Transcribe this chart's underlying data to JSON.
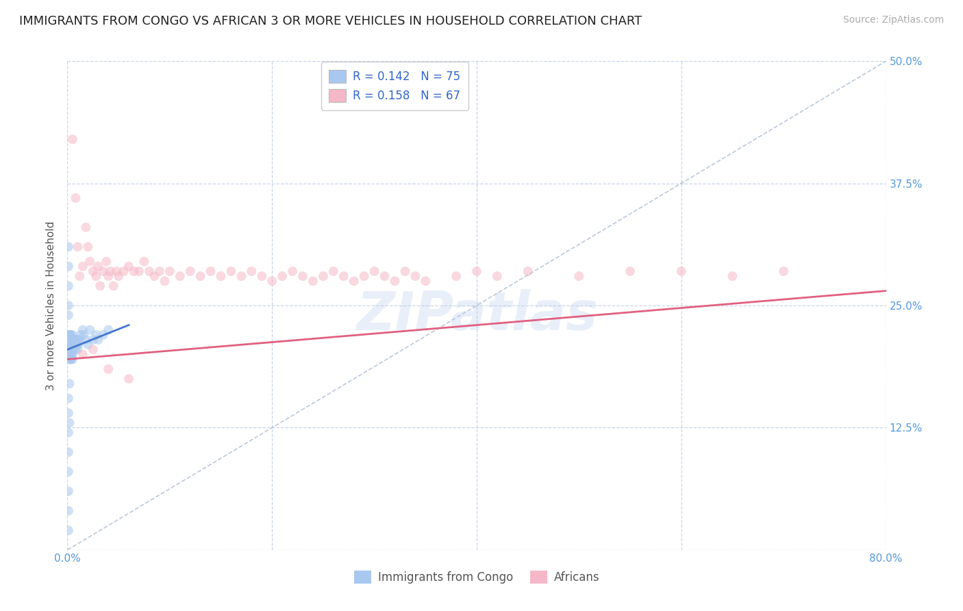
{
  "title": "IMMIGRANTS FROM CONGO VS AFRICAN 3 OR MORE VEHICLES IN HOUSEHOLD CORRELATION CHART",
  "source": "Source: ZipAtlas.com",
  "ylabel": "3 or more Vehicles in Household",
  "xlim": [
    0.0,
    0.8
  ],
  "ylim": [
    0.0,
    0.5
  ],
  "xticks": [
    0.0,
    0.2,
    0.4,
    0.6,
    0.8
  ],
  "xtick_labels": [
    "0.0%",
    "",
    "",
    "",
    "80.0%"
  ],
  "yticks": [
    0.0,
    0.125,
    0.25,
    0.375,
    0.5
  ],
  "ytick_labels_right": [
    "",
    "12.5%",
    "25.0%",
    "37.5%",
    "50.0%"
  ],
  "legend_entries": [
    {
      "label": "R = 0.142   N = 75",
      "color": "#a8c8f0"
    },
    {
      "label": "R = 0.158   N = 67",
      "color": "#f5b8c8"
    }
  ],
  "bottom_legend": [
    {
      "label": "Immigrants from Congo",
      "color": "#a8c8f0"
    },
    {
      "label": "Africans",
      "color": "#f5b8c8"
    }
  ],
  "watermark": "ZIPatlas",
  "title_color": "#222222",
  "title_fontsize": 13,
  "source_color": "#aaaaaa",
  "source_fontsize": 10,
  "axis_label_color": "#555555",
  "tick_color": "#5599dd",
  "grid_color": "#c8d4e8",
  "scatter_alpha": 0.55,
  "scatter_size": 100,
  "line_blue": "#4477cc",
  "line_pink": "#e06080",
  "diag_line_color": "#aabbd0",
  "legend_text_color": "#3366cc",
  "congo_points_x": [
    0.001,
    0.001,
    0.001,
    0.001,
    0.002,
    0.002,
    0.002,
    0.002,
    0.002,
    0.002,
    0.002,
    0.002,
    0.002,
    0.002,
    0.002,
    0.003,
    0.003,
    0.003,
    0.003,
    0.003,
    0.003,
    0.003,
    0.003,
    0.003,
    0.003,
    0.004,
    0.004,
    0.004,
    0.004,
    0.004,
    0.004,
    0.004,
    0.005,
    0.005,
    0.005,
    0.005,
    0.005,
    0.006,
    0.006,
    0.006,
    0.007,
    0.007,
    0.008,
    0.008,
    0.009,
    0.01,
    0.01,
    0.011,
    0.012,
    0.013,
    0.015,
    0.016,
    0.018,
    0.02,
    0.022,
    0.025,
    0.028,
    0.03,
    0.035,
    0.04,
    0.001,
    0.001,
    0.001,
    0.001,
    0.001,
    0.001,
    0.001,
    0.001,
    0.001,
    0.001,
    0.001,
    0.001,
    0.001,
    0.002,
    0.002
  ],
  "congo_points_y": [
    0.215,
    0.21,
    0.22,
    0.205,
    0.215,
    0.22,
    0.21,
    0.2,
    0.215,
    0.205,
    0.195,
    0.21,
    0.2,
    0.215,
    0.205,
    0.215,
    0.22,
    0.21,
    0.2,
    0.195,
    0.215,
    0.205,
    0.21,
    0.22,
    0.2,
    0.215,
    0.205,
    0.21,
    0.195,
    0.2,
    0.215,
    0.205,
    0.21,
    0.2,
    0.215,
    0.195,
    0.22,
    0.215,
    0.205,
    0.21,
    0.215,
    0.21,
    0.205,
    0.215,
    0.21,
    0.215,
    0.205,
    0.21,
    0.215,
    0.22,
    0.225,
    0.22,
    0.215,
    0.21,
    0.225,
    0.215,
    0.22,
    0.215,
    0.22,
    0.225,
    0.155,
    0.14,
    0.12,
    0.1,
    0.08,
    0.06,
    0.04,
    0.02,
    0.31,
    0.29,
    0.27,
    0.25,
    0.24,
    0.17,
    0.13
  ],
  "african_points_x": [
    0.005,
    0.008,
    0.01,
    0.012,
    0.015,
    0.018,
    0.02,
    0.022,
    0.025,
    0.028,
    0.03,
    0.032,
    0.035,
    0.038,
    0.04,
    0.042,
    0.045,
    0.048,
    0.05,
    0.055,
    0.06,
    0.065,
    0.07,
    0.075,
    0.08,
    0.085,
    0.09,
    0.095,
    0.1,
    0.11,
    0.12,
    0.13,
    0.14,
    0.15,
    0.16,
    0.17,
    0.18,
    0.19,
    0.2,
    0.21,
    0.22,
    0.23,
    0.24,
    0.25,
    0.26,
    0.27,
    0.28,
    0.29,
    0.3,
    0.31,
    0.32,
    0.33,
    0.34,
    0.35,
    0.38,
    0.4,
    0.42,
    0.45,
    0.5,
    0.55,
    0.6,
    0.65,
    0.7,
    0.015,
    0.025,
    0.04,
    0.06
  ],
  "african_points_y": [
    0.42,
    0.36,
    0.31,
    0.28,
    0.29,
    0.33,
    0.31,
    0.295,
    0.285,
    0.28,
    0.29,
    0.27,
    0.285,
    0.295,
    0.28,
    0.285,
    0.27,
    0.285,
    0.28,
    0.285,
    0.29,
    0.285,
    0.285,
    0.295,
    0.285,
    0.28,
    0.285,
    0.275,
    0.285,
    0.28,
    0.285,
    0.28,
    0.285,
    0.28,
    0.285,
    0.28,
    0.285,
    0.28,
    0.275,
    0.28,
    0.285,
    0.28,
    0.275,
    0.28,
    0.285,
    0.28,
    0.275,
    0.28,
    0.285,
    0.28,
    0.275,
    0.285,
    0.28,
    0.275,
    0.28,
    0.285,
    0.28,
    0.285,
    0.28,
    0.285,
    0.285,
    0.28,
    0.285,
    0.2,
    0.205,
    0.185,
    0.175
  ],
  "congo_line_x": [
    0.0,
    0.06
  ],
  "congo_line_y": [
    0.205,
    0.23
  ],
  "african_line_x": [
    0.0,
    0.8
  ],
  "african_line_y": [
    0.195,
    0.265
  ]
}
